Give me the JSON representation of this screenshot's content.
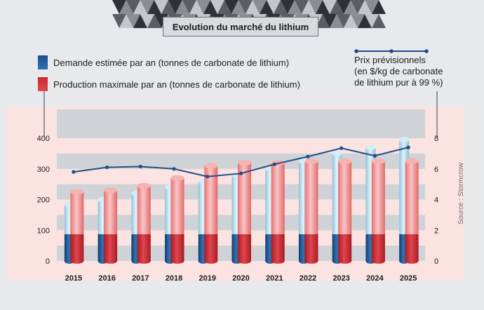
{
  "title": "Evolution du marché du lithium",
  "source": "Source : Stormcrow",
  "legend": {
    "demand": "Demande estimée par an (tonnes de carbonate de lithium)",
    "production": "Production maximale par an (tonnes de carbonate de lithium)",
    "price_line1": "Prix prévisionnels",
    "price_line2": "(en $/kg de carbonate",
    "price_line3": "de lithium pur à 99 %)"
  },
  "colors": {
    "demand_light": "#a8d3e3",
    "demand_dark": "#1b4f8c",
    "production_light": "#ef8e8e",
    "production_dark": "#cc2530",
    "price_line": "#1e4e88",
    "band_gray": "#cfd2d6",
    "band_pink": "#fbe3e1"
  },
  "chart_data": {
    "type": "bar",
    "categories": [
      "2015",
      "2016",
      "2017",
      "2018",
      "2019",
      "2020",
      "2021",
      "2022",
      "2023",
      "2024",
      "2025"
    ],
    "series": [
      {
        "name": "Demande estimée par an (tonnes de carbonate de lithium)",
        "axis": "left",
        "values": [
          185,
          200,
          220,
          240,
          260,
          280,
          300,
          325,
          350,
          370,
          395
        ]
      },
      {
        "name": "Production maximale par an (tonnes de carbonate de lithium)",
        "axis": "left",
        "values": [
          225,
          230,
          245,
          270,
          310,
          320,
          320,
          325,
          325,
          325,
          325
        ]
      },
      {
        "name": "Prix prévisionnels (en $/kg de carbonate de lithium pur à 99 %)",
        "axis": "right",
        "type": "line",
        "values": [
          5.8,
          6.1,
          6.15,
          6.0,
          5.5,
          5.7,
          6.3,
          6.8,
          7.35,
          6.85,
          7.4
        ]
      }
    ],
    "y_left": {
      "ylim": [
        0,
        400
      ],
      "ticks": [
        "0",
        "100",
        "200",
        "300",
        "400"
      ]
    },
    "y_right": {
      "ylim": [
        0,
        8
      ],
      "ticks": [
        "0",
        "2",
        "4",
        "6",
        "8"
      ]
    },
    "legend_position": "top"
  }
}
